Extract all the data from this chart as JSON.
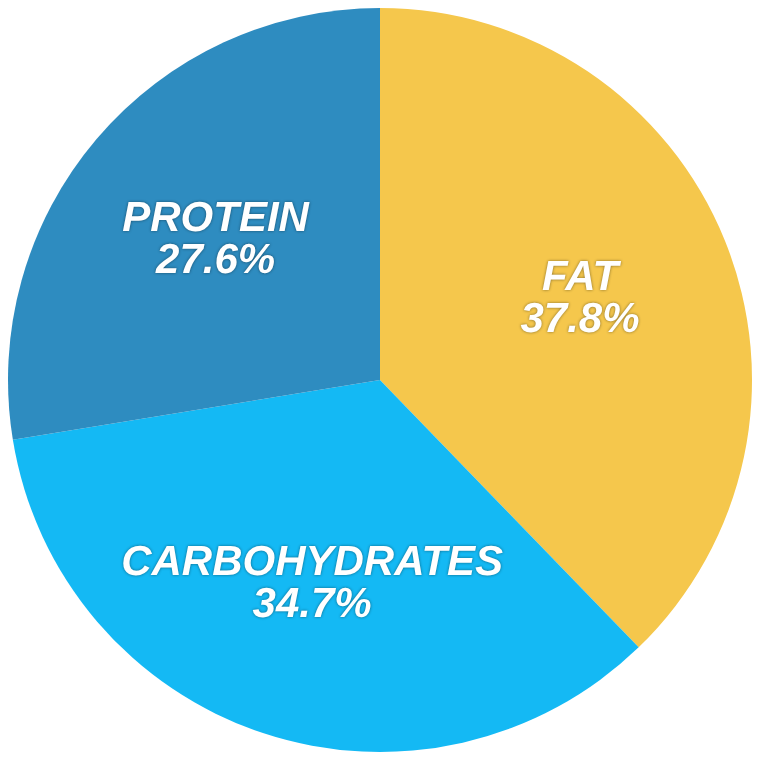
{
  "chart_data": {
    "type": "pie",
    "categories": [
      "FAT",
      "CARBOHYDRATES",
      "PROTEIN"
    ],
    "values": [
      37.8,
      34.7,
      27.6
    ],
    "colors": [
      "#f5c74c",
      "#14b9f4",
      "#2e8cc0"
    ],
    "value_labels": [
      "37.8%",
      "34.7%",
      "27.6%"
    ],
    "legend": false
  }
}
